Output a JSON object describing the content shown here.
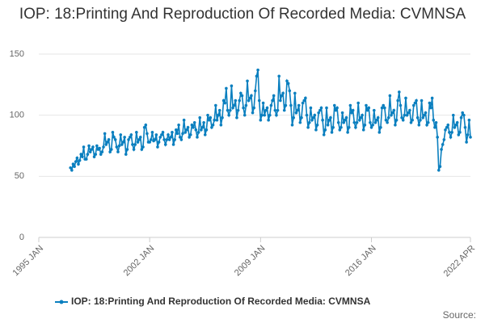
{
  "chart_data": {
    "type": "line",
    "title": "IOP: 18:Printing And Reproduction Of Recorded Media: CVMNSA",
    "source": "Source:",
    "xlim": [
      "1995 JAN",
      "2022 APR"
    ],
    "xticks": [
      "1995 JAN",
      "2002 JAN",
      "2009 JAN",
      "2016 JAN",
      "2022 APR"
    ],
    "ylim": [
      0,
      150
    ],
    "yticks": [
      0,
      50,
      100,
      150
    ],
    "grid": true,
    "legend": "bottom",
    "x": [
      "1997 JAN",
      "1997 FEB",
      "1997 MAR",
      "1997 APR",
      "1997 MAY",
      "1997 JUN",
      "1997 JUL",
      "1997 AUG",
      "1997 SEP",
      "1997 OCT",
      "1997 NOV",
      "1997 DEC",
      "1998 JAN",
      "1998 FEB",
      "1998 MAR",
      "1998 APR",
      "1998 MAY",
      "1998 JUN",
      "1998 JUL",
      "1998 AUG",
      "1998 SEP",
      "1998 OCT",
      "1998 NOV",
      "1998 DEC",
      "1999 JAN",
      "1999 FEB",
      "1999 MAR",
      "1999 APR",
      "1999 MAY",
      "1999 JUN",
      "1999 JUL",
      "1999 AUG",
      "1999 SEP",
      "1999 OCT",
      "1999 NOV",
      "1999 DEC",
      "2000 JAN",
      "2000 FEB",
      "2000 MAR",
      "2000 APR",
      "2000 MAY",
      "2000 JUN",
      "2000 JUL",
      "2000 AUG",
      "2000 SEP",
      "2000 OCT",
      "2000 NOV",
      "2000 DEC",
      "2001 JAN",
      "2001 FEB",
      "2001 MAR",
      "2001 APR",
      "2001 MAY",
      "2001 JUN",
      "2001 JUL",
      "2001 AUG",
      "2001 SEP",
      "2001 OCT",
      "2001 NOV",
      "2001 DEC",
      "2002 JAN",
      "2002 FEB",
      "2002 MAR",
      "2002 APR",
      "2002 MAY",
      "2002 JUN",
      "2002 JUL",
      "2002 AUG",
      "2002 SEP",
      "2002 OCT",
      "2002 NOV",
      "2002 DEC",
      "2003 JAN",
      "2003 FEB",
      "2003 MAR",
      "2003 APR",
      "2003 MAY",
      "2003 JUN",
      "2003 JUL",
      "2003 AUG",
      "2003 SEP",
      "2003 OCT",
      "2003 NOV",
      "2003 DEC",
      "2004 JAN",
      "2004 FEB",
      "2004 MAR",
      "2004 APR",
      "2004 MAY",
      "2004 JUN",
      "2004 JUL",
      "2004 AUG",
      "2004 SEP",
      "2004 OCT",
      "2004 NOV",
      "2004 DEC",
      "2005 JAN",
      "2005 FEB",
      "2005 MAR",
      "2005 APR",
      "2005 MAY",
      "2005 JUN",
      "2005 JUL",
      "2005 AUG",
      "2005 SEP",
      "2005 OCT",
      "2005 NOV",
      "2005 DEC",
      "2006 JAN",
      "2006 FEB",
      "2006 MAR",
      "2006 APR",
      "2006 MAY",
      "2006 JUN",
      "2006 JUL",
      "2006 AUG",
      "2006 SEP",
      "2006 OCT",
      "2006 NOV",
      "2006 DEC",
      "2007 JAN",
      "2007 FEB",
      "2007 MAR",
      "2007 APR",
      "2007 MAY",
      "2007 JUN",
      "2007 JUL",
      "2007 AUG",
      "2007 SEP",
      "2007 OCT",
      "2007 NOV",
      "2007 DEC",
      "2008 JAN",
      "2008 FEB",
      "2008 MAR",
      "2008 APR",
      "2008 MAY",
      "2008 JUN",
      "2008 JUL",
      "2008 AUG",
      "2008 SEP",
      "2008 OCT",
      "2008 NOV",
      "2008 DEC",
      "2009 JAN",
      "2009 FEB",
      "2009 MAR",
      "2009 APR",
      "2009 MAY",
      "2009 JUN",
      "2009 JUL",
      "2009 AUG",
      "2009 SEP",
      "2009 OCT",
      "2009 NOV",
      "2009 DEC",
      "2010 JAN",
      "2010 FEB",
      "2010 MAR",
      "2010 APR",
      "2010 MAY",
      "2010 JUN",
      "2010 JUL",
      "2010 AUG",
      "2010 SEP",
      "2010 OCT",
      "2010 NOV",
      "2010 DEC",
      "2011 JAN",
      "2011 FEB",
      "2011 MAR",
      "2011 APR",
      "2011 MAY",
      "2011 JUN",
      "2011 JUL",
      "2011 AUG",
      "2011 SEP",
      "2011 OCT",
      "2011 NOV",
      "2011 DEC",
      "2012 JAN",
      "2012 FEB",
      "2012 MAR",
      "2012 APR",
      "2012 MAY",
      "2012 JUN",
      "2012 JUL",
      "2012 AUG",
      "2012 SEP",
      "2012 OCT",
      "2012 NOV",
      "2012 DEC",
      "2013 JAN",
      "2013 FEB",
      "2013 MAR",
      "2013 APR",
      "2013 MAY",
      "2013 JUN",
      "2013 JUL",
      "2013 AUG",
      "2013 SEP",
      "2013 OCT",
      "2013 NOV",
      "2013 DEC",
      "2014 JAN",
      "2014 FEB",
      "2014 MAR",
      "2014 APR",
      "2014 MAY",
      "2014 JUN",
      "2014 JUL",
      "2014 AUG",
      "2014 SEP",
      "2014 OCT",
      "2014 NOV",
      "2014 DEC",
      "2015 JAN",
      "2015 FEB",
      "2015 MAR",
      "2015 APR",
      "2015 MAY",
      "2015 JUN",
      "2015 JUL",
      "2015 AUG",
      "2015 SEP",
      "2015 OCT",
      "2015 NOV",
      "2015 DEC",
      "2016 JAN",
      "2016 FEB",
      "2016 MAR",
      "2016 APR",
      "2016 MAY",
      "2016 JUN",
      "2016 JUL",
      "2016 AUG",
      "2016 SEP",
      "2016 OCT",
      "2016 NOV",
      "2016 DEC",
      "2017 JAN",
      "2017 FEB",
      "2017 MAR",
      "2017 APR",
      "2017 MAY",
      "2017 JUN",
      "2017 JUL",
      "2017 AUG",
      "2017 SEP",
      "2017 OCT",
      "2017 NOV",
      "2017 DEC",
      "2018 JAN",
      "2018 FEB",
      "2018 MAR",
      "2018 APR",
      "2018 MAY",
      "2018 JUN",
      "2018 JUL",
      "2018 AUG",
      "2018 SEP",
      "2018 OCT",
      "2018 NOV",
      "2018 DEC",
      "2019 JAN",
      "2019 FEB",
      "2019 MAR",
      "2019 APR",
      "2019 MAY",
      "2019 JUN",
      "2019 JUL",
      "2019 AUG",
      "2019 SEP",
      "2019 OCT",
      "2019 NOV",
      "2019 DEC",
      "2020 JAN",
      "2020 FEB",
      "2020 MAR",
      "2020 APR",
      "2020 MAY",
      "2020 JUN",
      "2020 JUL",
      "2020 AUG",
      "2020 SEP",
      "2020 OCT",
      "2020 NOV",
      "2020 DEC",
      "2021 JAN",
      "2021 FEB",
      "2021 MAR",
      "2021 APR",
      "2021 MAY",
      "2021 JUN",
      "2021 JUL",
      "2021 AUG",
      "2021 SEP",
      "2021 OCT",
      "2021 NOV",
      "2021 DEC",
      "2022 JAN",
      "2022 FEB",
      "2022 MAR",
      "2022 APR"
    ],
    "series": [
      {
        "name": "IOP: 18:Printing And Reproduction Of Recorded Media: CVMNSA",
        "color": "#0a7fbf",
        "values": [
          57,
          55,
          60,
          58,
          62,
          65,
          60,
          63,
          68,
          66,
          74,
          64,
          64,
          68,
          75,
          70,
          72,
          74,
          66,
          68,
          75,
          72,
          73,
          68,
          70,
          74,
          85,
          76,
          78,
          80,
          70,
          72,
          86,
          82,
          80,
          74,
          70,
          75,
          84,
          76,
          78,
          82,
          68,
          72,
          80,
          82,
          84,
          76,
          72,
          76,
          86,
          78,
          80,
          82,
          72,
          74,
          90,
          92,
          85,
          78,
          78,
          80,
          86,
          79,
          80,
          84,
          74,
          78,
          82,
          84,
          86,
          80,
          76,
          80,
          84,
          80,
          82,
          86,
          76,
          80,
          88,
          85,
          92,
          82,
          80,
          85,
          96,
          86,
          88,
          90,
          82,
          84,
          92,
          90,
          94,
          88,
          82,
          86,
          98,
          88,
          90,
          94,
          84,
          88,
          100,
          96,
          98,
          90,
          92,
          96,
          108,
          96,
          100,
          104,
          92,
          98,
          112,
          110,
          122,
          104,
          100,
          104,
          124,
          106,
          108,
          112,
          98,
          104,
          112,
          118,
          116,
          106,
          100,
          108,
          128,
          112,
          114,
          116,
          102,
          106,
          120,
          132,
          137,
          112,
          96,
          100,
          110,
          100,
          104,
          106,
          96,
          100,
          108,
          112,
          116,
          104,
          100,
          104,
          132,
          112,
          116,
          118,
          104,
          108,
          128,
          126,
          120,
          108,
          92,
          98,
          118,
          102,
          104,
          108,
          94,
          98,
          110,
          112,
          114,
          100,
          90,
          94,
          106,
          96,
          98,
          100,
          88,
          92,
          102,
          104,
          106,
          96,
          84,
          88,
          106,
          92,
          96,
          98,
          86,
          90,
          108,
          104,
          106,
          94,
          88,
          90,
          102,
          94,
          96,
          98,
          86,
          90,
          108,
          102,
          104,
          94,
          90,
          94,
          110,
          96,
          98,
          100,
          88,
          92,
          108,
          104,
          106,
          94,
          90,
          92,
          104,
          94,
          96,
          98,
          86,
          90,
          106,
          108,
          106,
          96,
          94,
          98,
          116,
          100,
          102,
          104,
          92,
          96,
          112,
          119,
          108,
          98,
          96,
          100,
          114,
          100,
          102,
          104,
          94,
          96,
          108,
          110,
          112,
          98,
          92,
          96,
          112,
          98,
          100,
          102,
          92,
          94,
          110,
          106,
          114,
          96,
          90,
          94,
          82,
          55,
          58,
          72,
          76,
          80,
          88,
          90,
          92,
          86,
          82,
          86,
          100,
          90,
          92,
          94,
          84,
          86,
          98,
          102,
          100,
          90,
          78,
          84,
          96,
          82
        ]
      }
    ]
  }
}
